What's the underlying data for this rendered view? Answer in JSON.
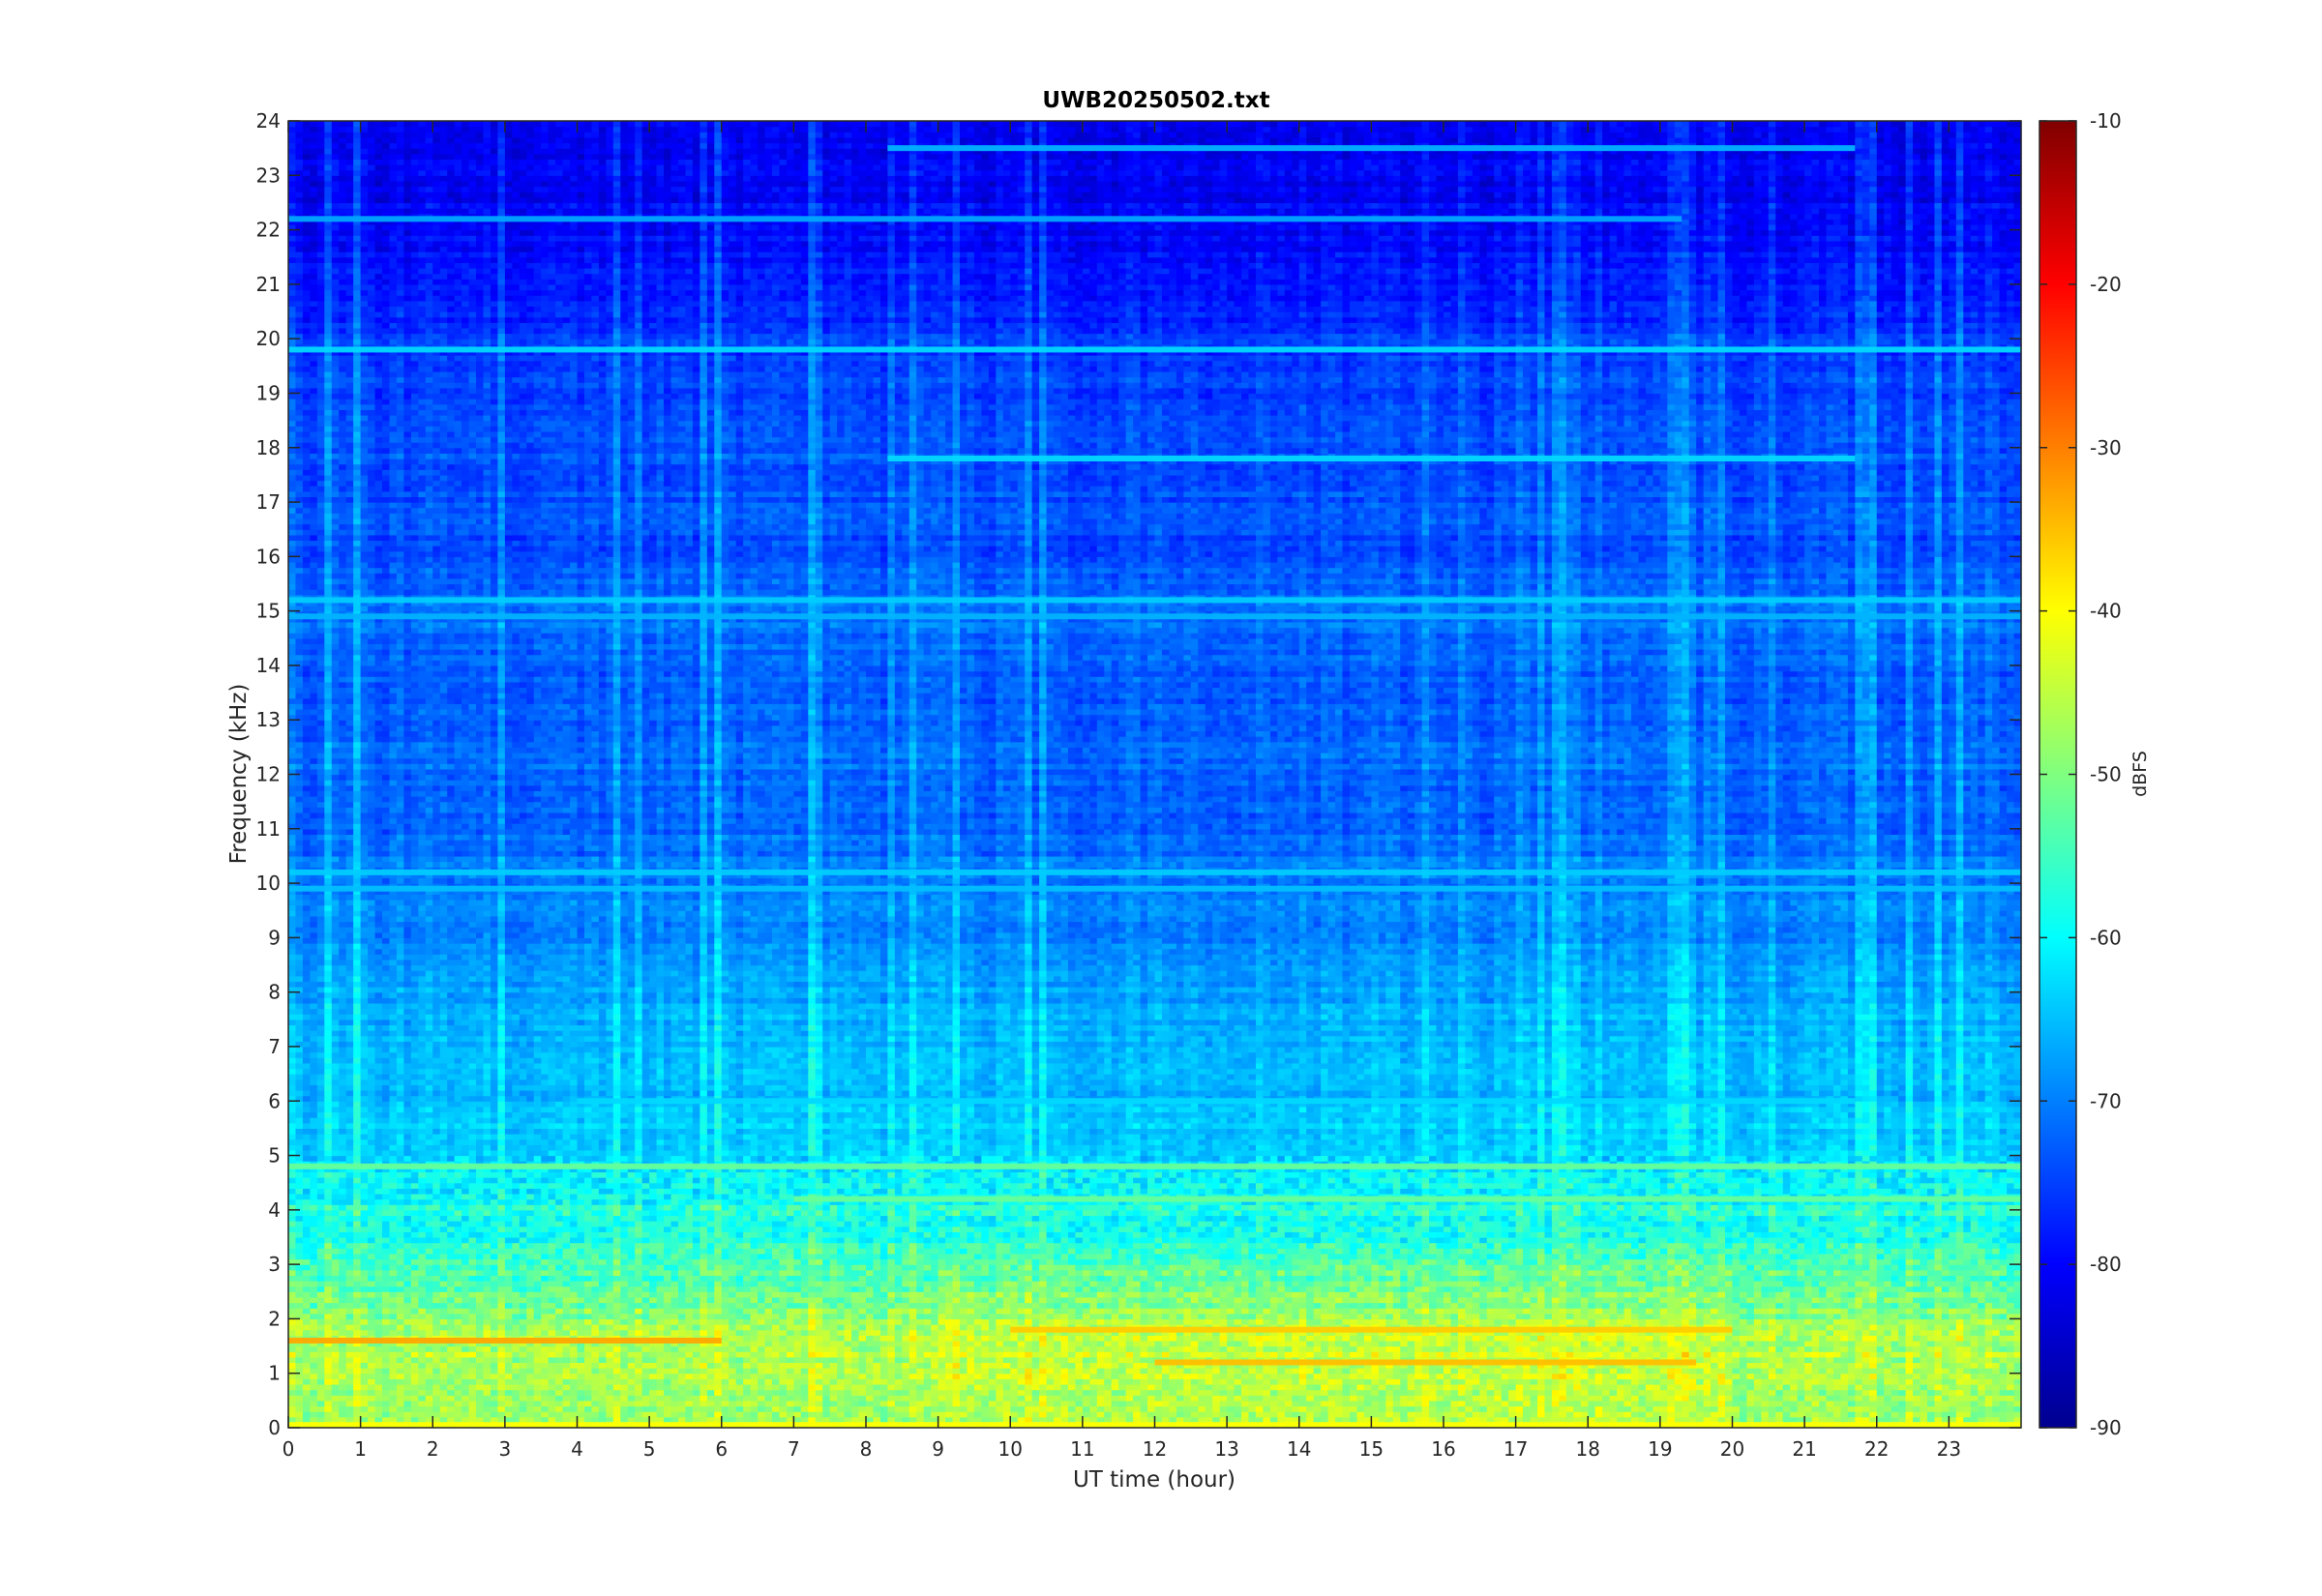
{
  "chart_data": {
    "type": "heatmap",
    "title": "UWB20250502.txt",
    "xlabel": "UT time (hour)",
    "ylabel": "Frequency (kHz)",
    "xlim": [
      0,
      24
    ],
    "ylim": [
      0,
      24
    ],
    "x_ticks": [
      0,
      1,
      2,
      3,
      4,
      5,
      6,
      7,
      8,
      9,
      10,
      11,
      12,
      13,
      14,
      15,
      16,
      17,
      18,
      19,
      20,
      21,
      22,
      23
    ],
    "y_ticks": [
      0,
      1,
      2,
      3,
      4,
      5,
      6,
      7,
      8,
      9,
      10,
      11,
      12,
      13,
      14,
      15,
      16,
      17,
      18,
      19,
      20,
      21,
      22,
      23,
      24
    ],
    "colorbar": {
      "label": "dBFS",
      "limits": [
        -90,
        -10
      ],
      "ticks": [
        -90,
        -80,
        -70,
        -60,
        -50,
        -40,
        -30,
        -20,
        -10
      ],
      "colormap": "jet"
    },
    "level_profile": {
      "description_units": "frequency kHz -> approximate dBFS",
      "points": [
        [
          0.0,
          -48
        ],
        [
          0.5,
          -49
        ],
        [
          1.0,
          -47
        ],
        [
          1.5,
          -46
        ],
        [
          2.0,
          -49
        ],
        [
          2.5,
          -53
        ],
        [
          3.0,
          -55
        ],
        [
          3.5,
          -58
        ],
        [
          4.0,
          -58
        ],
        [
          4.5,
          -60
        ],
        [
          5.0,
          -63
        ],
        [
          5.5,
          -64
        ],
        [
          6.0,
          -65
        ],
        [
          7.0,
          -66
        ],
        [
          8.0,
          -67
        ],
        [
          9.0,
          -70
        ],
        [
          10.0,
          -70
        ],
        [
          11.0,
          -72
        ],
        [
          12.0,
          -72
        ],
        [
          13.0,
          -73
        ],
        [
          14.0,
          -73
        ],
        [
          15.0,
          -71
        ],
        [
          16.0,
          -74
        ],
        [
          17.0,
          -74
        ],
        [
          18.0,
          -74
        ],
        [
          19.0,
          -75
        ],
        [
          20.0,
          -76
        ],
        [
          21.0,
          -79
        ],
        [
          22.0,
          -80
        ],
        [
          23.0,
          -81
        ],
        [
          24.0,
          -82
        ]
      ]
    },
    "bands": [
      {
        "freq": 19.8,
        "level": -63,
        "t_start": 0,
        "t_end": 24
      },
      {
        "freq": 17.8,
        "level": -63,
        "t_start": 8.3,
        "t_end": 21.7
      },
      {
        "freq": 22.2,
        "level": -67,
        "t_start": 0,
        "t_end": 19.3
      },
      {
        "freq": 23.5,
        "level": -66,
        "t_start": 8.3,
        "t_end": 21.7
      },
      {
        "freq": 15.2,
        "level": -64,
        "t_start": 0,
        "t_end": 24
      },
      {
        "freq": 14.9,
        "level": -66,
        "t_start": 0,
        "t_end": 24
      },
      {
        "freq": 10.2,
        "level": -64,
        "t_start": 0,
        "t_end": 24
      },
      {
        "freq": 9.9,
        "level": -65,
        "t_start": 0,
        "t_end": 24
      },
      {
        "freq": 6.0,
        "level": -63,
        "t_start": 4.0,
        "t_end": 21.7
      },
      {
        "freq": 4.8,
        "level": -52,
        "t_start": 0,
        "t_end": 24
      },
      {
        "freq": 4.2,
        "level": -52,
        "t_start": 7.0,
        "t_end": 24
      },
      {
        "freq": 1.8,
        "level": -36,
        "t_start": 10.0,
        "t_end": 20.0
      },
      {
        "freq": 1.6,
        "level": -33,
        "t_start": 0,
        "t_end": 6.0
      },
      {
        "freq": 1.2,
        "level": -35,
        "t_start": 12.0,
        "t_end": 19.5
      },
      {
        "freq": 0.05,
        "level": -40,
        "t_start": 0,
        "t_end": 24
      }
    ]
  }
}
